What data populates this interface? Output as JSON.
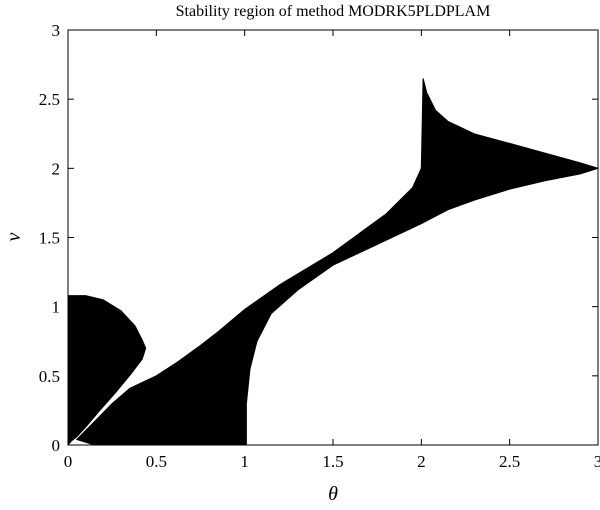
{
  "chart_data": {
    "type": "area",
    "title": "Stability region of method MODRK5PLDPLAM",
    "xlabel": "θ",
    "ylabel": "v",
    "xlim": [
      0,
      3
    ],
    "ylim": [
      0,
      3
    ],
    "x_ticks": [
      "0",
      "0.5",
      "1",
      "1.5",
      "2",
      "2.5",
      "3"
    ],
    "y_ticks": [
      "0",
      "0.5",
      "1",
      "1.5",
      "2",
      "2.5",
      "3"
    ],
    "grid": false,
    "legend": "none",
    "fill_color": "#000000",
    "regions": [
      {
        "name": "",
        "boundary": [
          [
            0.0,
            0.0
          ],
          [
            0.0,
            1.08
          ],
          [
            0.1,
            1.08
          ],
          [
            0.2,
            1.05
          ],
          [
            0.3,
            0.97
          ],
          [
            0.38,
            0.86
          ],
          [
            0.42,
            0.76
          ],
          [
            0.44,
            0.7
          ],
          [
            0.42,
            0.62
          ],
          [
            0.36,
            0.52
          ],
          [
            0.27,
            0.38
          ],
          [
            0.18,
            0.25
          ],
          [
            0.1,
            0.13
          ],
          [
            0.05,
            0.06
          ],
          [
            0.02,
            0.03
          ]
        ]
      },
      {
        "name": "",
        "boundary": [
          [
            0.05,
            0.04
          ],
          [
            0.12,
            0.13
          ],
          [
            0.25,
            0.3
          ],
          [
            0.35,
            0.41
          ],
          [
            0.5,
            0.5
          ],
          [
            0.62,
            0.6
          ],
          [
            0.75,
            0.72
          ],
          [
            0.85,
            0.82
          ],
          [
            1.0,
            0.98
          ],
          [
            1.2,
            1.16
          ],
          [
            1.5,
            1.39
          ],
          [
            1.8,
            1.67
          ],
          [
            1.95,
            1.86
          ],
          [
            2.0,
            2.0
          ],
          [
            2.01,
            2.65
          ],
          [
            2.03,
            2.55
          ],
          [
            2.08,
            2.42
          ],
          [
            2.15,
            2.34
          ],
          [
            2.3,
            2.25
          ],
          [
            2.5,
            2.18
          ],
          [
            2.7,
            2.11
          ],
          [
            2.9,
            2.04
          ],
          [
            3.0,
            2.0
          ],
          [
            2.9,
            1.96
          ],
          [
            2.7,
            1.91
          ],
          [
            2.5,
            1.85
          ],
          [
            2.3,
            1.77
          ],
          [
            2.15,
            1.7
          ],
          [
            2.0,
            1.6
          ],
          [
            1.8,
            1.48
          ],
          [
            1.5,
            1.3
          ],
          [
            1.3,
            1.12
          ],
          [
            1.15,
            0.95
          ],
          [
            1.07,
            0.75
          ],
          [
            1.03,
            0.55
          ],
          [
            1.01,
            0.3
          ],
          [
            1.01,
            0.0
          ],
          [
            0.15,
            0.0
          ]
        ]
      }
    ]
  }
}
